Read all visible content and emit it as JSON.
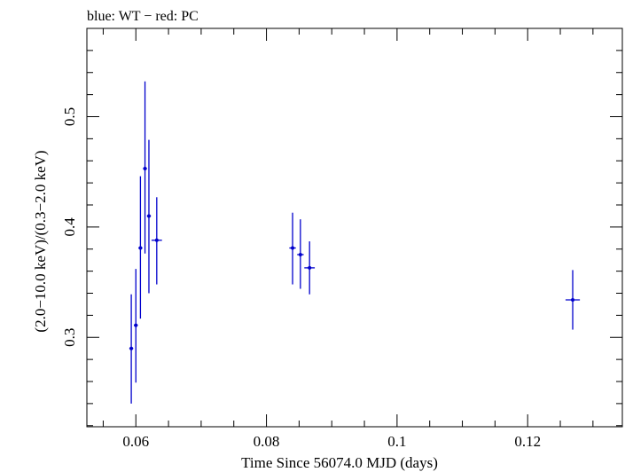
{
  "chart_data": {
    "type": "scatter",
    "title": "blue: WT − red: PC",
    "xlabel": "Time Since 56074.0 MJD (days)",
    "ylabel": "(2.0−10.0 keV)/(0.3−2.0 keV)",
    "xlim": [
      0.0525,
      0.1345
    ],
    "ylim": [
      0.219,
      0.58
    ],
    "x_ticks": [
      0.06,
      0.08,
      0.1,
      0.12
    ],
    "x_tick_labels": [
      "0.06",
      "0.08",
      "0.1",
      "0.12"
    ],
    "y_ticks": [
      0.3,
      0.4,
      0.5
    ],
    "y_tick_labels": [
      "0.3",
      "0.4",
      "0.5"
    ],
    "x_minor_step": 0.005,
    "y_minor_step": 0.02,
    "grid": false,
    "colors": {
      "wt": "#0000cc",
      "pc": "#ff0000",
      "axis": "#000000"
    },
    "series": [
      {
        "name": "WT",
        "color": "#0000cc",
        "points": [
          {
            "x": 0.0593,
            "y": 0.29,
            "xerr": 0.0003,
            "ylo": 0.24,
            "yhi": 0.339
          },
          {
            "x": 0.06,
            "y": 0.311,
            "xerr": 0.0003,
            "ylo": 0.259,
            "yhi": 0.362
          },
          {
            "x": 0.0607,
            "y": 0.381,
            "xerr": 0.0003,
            "ylo": 0.317,
            "yhi": 0.446
          },
          {
            "x": 0.0614,
            "y": 0.453,
            "xerr": 0.0003,
            "ylo": 0.376,
            "yhi": 0.532
          },
          {
            "x": 0.062,
            "y": 0.41,
            "xerr": 0.0003,
            "ylo": 0.34,
            "yhi": 0.479
          },
          {
            "x": 0.0632,
            "y": 0.388,
            "xerr": 0.0008,
            "ylo": 0.348,
            "yhi": 0.427
          },
          {
            "x": 0.084,
            "y": 0.381,
            "xerr": 0.0005,
            "ylo": 0.348,
            "yhi": 0.413
          },
          {
            "x": 0.0852,
            "y": 0.375,
            "xerr": 0.0005,
            "ylo": 0.344,
            "yhi": 0.407
          },
          {
            "x": 0.0866,
            "y": 0.363,
            "xerr": 0.0008,
            "ylo": 0.339,
            "yhi": 0.387
          },
          {
            "x": 0.1269,
            "y": 0.334,
            "xerr": 0.0011,
            "ylo": 0.307,
            "yhi": 0.361
          }
        ]
      }
    ]
  }
}
